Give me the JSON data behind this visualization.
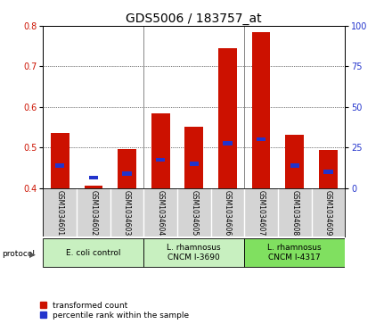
{
  "title": "GDS5006 / 183757_at",
  "samples": [
    "GSM1034601",
    "GSM1034602",
    "GSM1034603",
    "GSM1034604",
    "GSM1034605",
    "GSM1034606",
    "GSM1034607",
    "GSM1034608",
    "GSM1034609"
  ],
  "red_values": [
    0.535,
    0.405,
    0.495,
    0.585,
    0.55,
    0.745,
    0.785,
    0.532,
    0.493
  ],
  "blue_values": [
    0.455,
    0.425,
    0.435,
    0.47,
    0.46,
    0.51,
    0.52,
    0.455,
    0.44
  ],
  "ylim_left": [
    0.4,
    0.8
  ],
  "ylim_right": [
    0,
    100
  ],
  "yticks_left": [
    0.4,
    0.5,
    0.6,
    0.7,
    0.8
  ],
  "yticks_right": [
    0,
    25,
    50,
    75,
    100
  ],
  "bar_width": 0.55,
  "bar_color_red": "#cc1100",
  "bar_color_blue": "#2233cc",
  "bg_color_plot": "#ffffff",
  "bg_color_samples": "#d4d4d4",
  "groups": [
    {
      "label": "E. coli control",
      "indices": [
        0,
        1,
        2
      ],
      "color": "#c8f0c0"
    },
    {
      "label": "L. rhamnosus\nCNCM I-3690",
      "indices": [
        3,
        4,
        5
      ],
      "color": "#c8f0c0"
    },
    {
      "label": "L. rhamnosus\nCNCM I-4317",
      "indices": [
        6,
        7,
        8
      ],
      "color": "#80e060"
    }
  ],
  "legend_red": "transformed count",
  "legend_blue": "percentile rank within the sample",
  "title_fontsize": 10,
  "tick_fontsize": 7,
  "sample_fontsize": 5.5,
  "group_fontsize": 6.5,
  "legend_fontsize": 6.5
}
